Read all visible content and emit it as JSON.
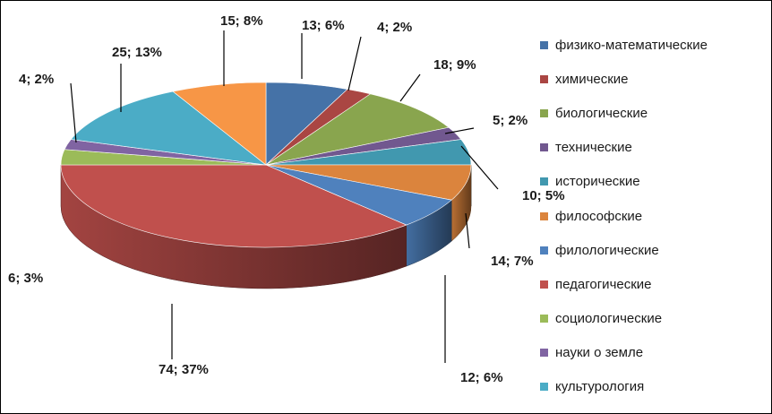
{
  "chart_data": {
    "type": "pie",
    "style": "3d",
    "legend_position": "right",
    "slices": [
      {
        "name": "физико-математические",
        "value": 13,
        "percent": "6%",
        "color": "#4572A7",
        "label": "13; 6%"
      },
      {
        "name": "химические",
        "value": 4,
        "percent": "2%",
        "color": "#AA4643",
        "label": "4; 2%"
      },
      {
        "name": "биологические",
        "value": 18,
        "percent": "9%",
        "color": "#89A54E",
        "label": "18; 9%"
      },
      {
        "name": "технические",
        "value": 5,
        "percent": "2%",
        "color": "#71588F",
        "label": "5; 2%"
      },
      {
        "name": "исторические",
        "value": 10,
        "percent": "5%",
        "color": "#4198AF",
        "label": "10; 5%"
      },
      {
        "name": "философские",
        "value": 14,
        "percent": "7%",
        "color": "#DB843D",
        "label": "14; 7%"
      },
      {
        "name": "филологические",
        "value": 12,
        "percent": "6%",
        "color": "#4F81BD",
        "label": "12; 6%"
      },
      {
        "name": "педагогические",
        "value": 74,
        "percent": "37%",
        "color": "#C0504D",
        "label": "74; 37%"
      },
      {
        "name": "социологические",
        "value": 6,
        "percent": "3%",
        "color": "#9BBB59",
        "label": "6; 3%"
      },
      {
        "name": "науки о земле",
        "value": 4,
        "percent": "2%",
        "color": "#8064A2",
        "label": "4; 2%"
      },
      {
        "name": "культурология",
        "value": 25,
        "percent": "13%",
        "color": "#4BACC6",
        "label": "25; 13%"
      },
      {
        "name": "",
        "value": 15,
        "percent": "8%",
        "color": "#F79646",
        "label": "15; 8%"
      }
    ]
  }
}
